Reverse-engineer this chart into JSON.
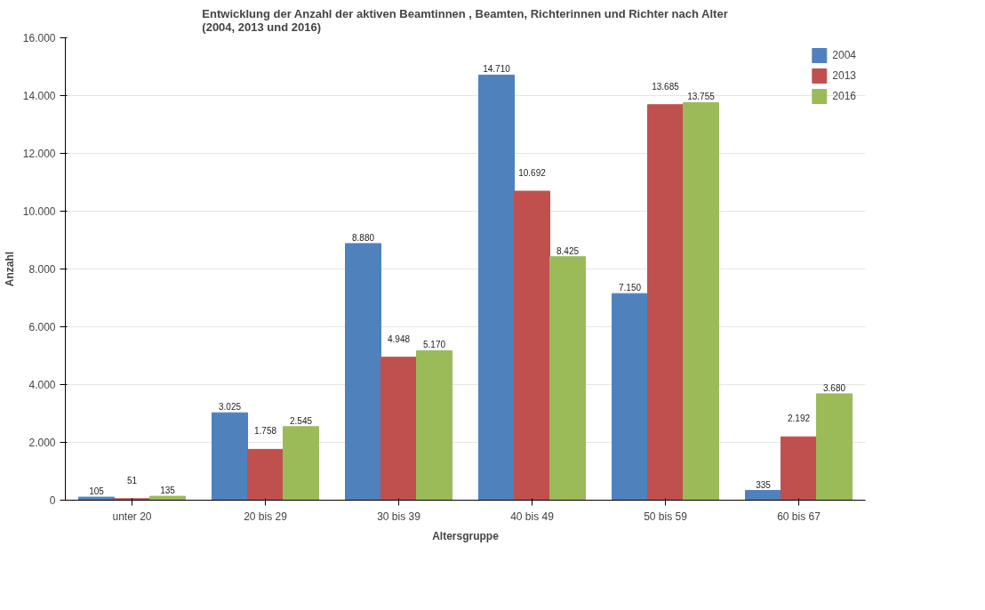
{
  "chart_data": {
    "type": "bar",
    "title": "Entwicklung der Anzahl der aktiven Beamtinnen , Beamten, Richterinnen und Richter nach Alter\n(2004, 2013 und 2016)",
    "xlabel": "Altersgruppe",
    "ylabel": "Anzahl",
    "categories": [
      "unter 20",
      "20 bis 29",
      "30 bis 39",
      "40 bis 49",
      "50 bis 59",
      "60 bis 67"
    ],
    "series": [
      {
        "name": "2004",
        "color": "#4f81bd",
        "values": [
          105,
          3025,
          8880,
          14710,
          7150,
          335
        ],
        "value_labels": [
          "105",
          "3.025",
          "8.880",
          "14.710",
          "7.150",
          "335"
        ]
      },
      {
        "name": "2013",
        "color": "#c0504d",
        "values": [
          51,
          1758,
          4948,
          10692,
          13685,
          2192
        ],
        "value_labels": [
          "51",
          "1.758",
          "4.948",
          "10.692",
          "13.685",
          "2.192"
        ]
      },
      {
        "name": "2016",
        "color": "#9bbb59",
        "values": [
          135,
          2545,
          5170,
          8425,
          13755,
          3680
        ],
        "value_labels": [
          "135",
          "2.545",
          "5.170",
          "8.425",
          "13.755",
          "3.680"
        ]
      }
    ],
    "ylim": [
      0,
      16000
    ],
    "yticks": [
      {
        "value": 0,
        "label": "0"
      },
      {
        "value": 2000,
        "label": "2.000"
      },
      {
        "value": 4000,
        "label": "4.000"
      },
      {
        "value": 6000,
        "label": "6.000"
      },
      {
        "value": 8000,
        "label": "8.000"
      },
      {
        "value": 10000,
        "label": "10.000"
      },
      {
        "value": 12000,
        "label": "12.000"
      },
      {
        "value": 14000,
        "label": "14.000"
      },
      {
        "value": 16000,
        "label": "16.000"
      }
    ],
    "grid": "y",
    "legend": "top right"
  }
}
